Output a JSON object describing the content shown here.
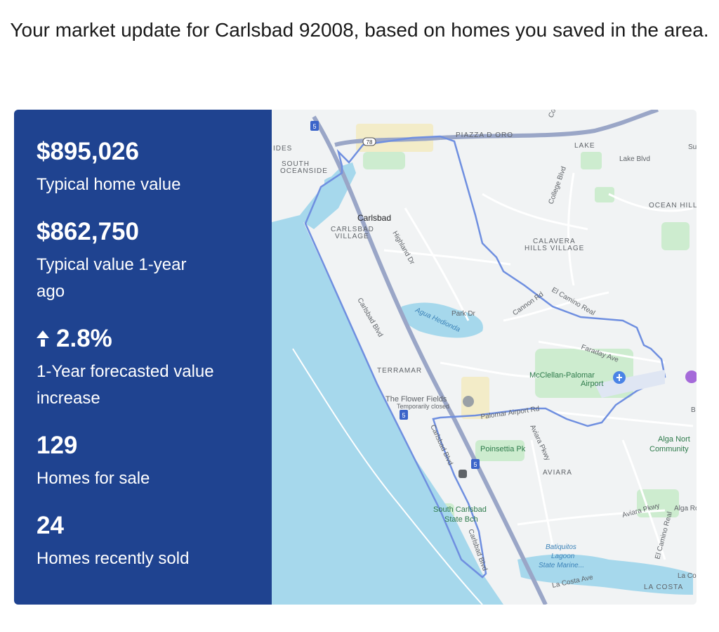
{
  "headline": "Your market update for Carlsbad 92008, based on homes you saved in the area.",
  "stats": [
    {
      "value": "$895,026",
      "label": "Typical home value"
    },
    {
      "value": "$862,750",
      "label": "Typical value 1-year ago"
    },
    {
      "value": "2.8%",
      "label": "1-Year forecasted value increase",
      "icon": "arrow-up-icon"
    },
    {
      "value": "129",
      "label": "Homes for sale"
    },
    {
      "value": "24",
      "label": "Homes recently sold"
    }
  ],
  "colors": {
    "panel": "#1f4390",
    "ocean": "#a6d8ec",
    "boundary": "#6f8fe0"
  },
  "map": {
    "labels": {
      "piazza": "PIAZZA D ORO",
      "lake": "LAKE",
      "lake_blvd": "Lake Blvd",
      "ides": "IDES",
      "south_oceanside_1": "SOUTH",
      "south_oceanside_2": "OCEANSIDE",
      "carlsbad": "Carlsbad",
      "carlsbad_village_1": "CARLSBAD",
      "carlsbad_village_2": "VILLAGE",
      "highland": "Highland Dr",
      "college": "College Blvd",
      "ocean_hill": "OCEAN HILL",
      "calavera_1": "CALAVERA",
      "calavera_2": "HILLS VILLAGE",
      "cannon": "Cannon Rd",
      "el_camino": "El Camino Real",
      "park": "Park Dr",
      "agua": "Agua Hedionda",
      "carlsbad_blvd": "Carlsbad Blvd",
      "faraday": "Faraday Ave",
      "terramar": "TERRAMAR",
      "mcclellan_1": "McClellan-Palomar",
      "mcclellan_2": "Airport",
      "flower_1": "The Flower Fields",
      "flower_2": "Temporarily closed",
      "palomar": "Palomar Airport Rd",
      "carlsbad_blvd_2": "Carlsbad Blvd",
      "poinsettia": "Poinsettia Pk",
      "aviara_pkwy": "Aviara Pkwy",
      "alga_1": "Alga Nort",
      "alga_2": "Community",
      "aviara": "AVIARA",
      "south_beach_1": "South Carlsbad",
      "south_beach_2": "State Bch",
      "aviara_pkwy_2": "Aviara Pkwy",
      "alga_rd": "Alga Ro",
      "el_camino_2": "El Camino Real",
      "carlsbad_blvd_3": "Carlsbad Blvd",
      "batiquitos_1": "Batiquitos",
      "batiquitos_2": "Lagoon",
      "batiquitos_3": "State Marine...",
      "la_costa_ave": "La Costa Ave",
      "la_costa": "LA COSTA",
      "la_cos": "La Cos",
      "b": "B",
      "su": "Su",
      "co": "Co",
      "hwy5": "5",
      "hwy78": "78"
    }
  }
}
